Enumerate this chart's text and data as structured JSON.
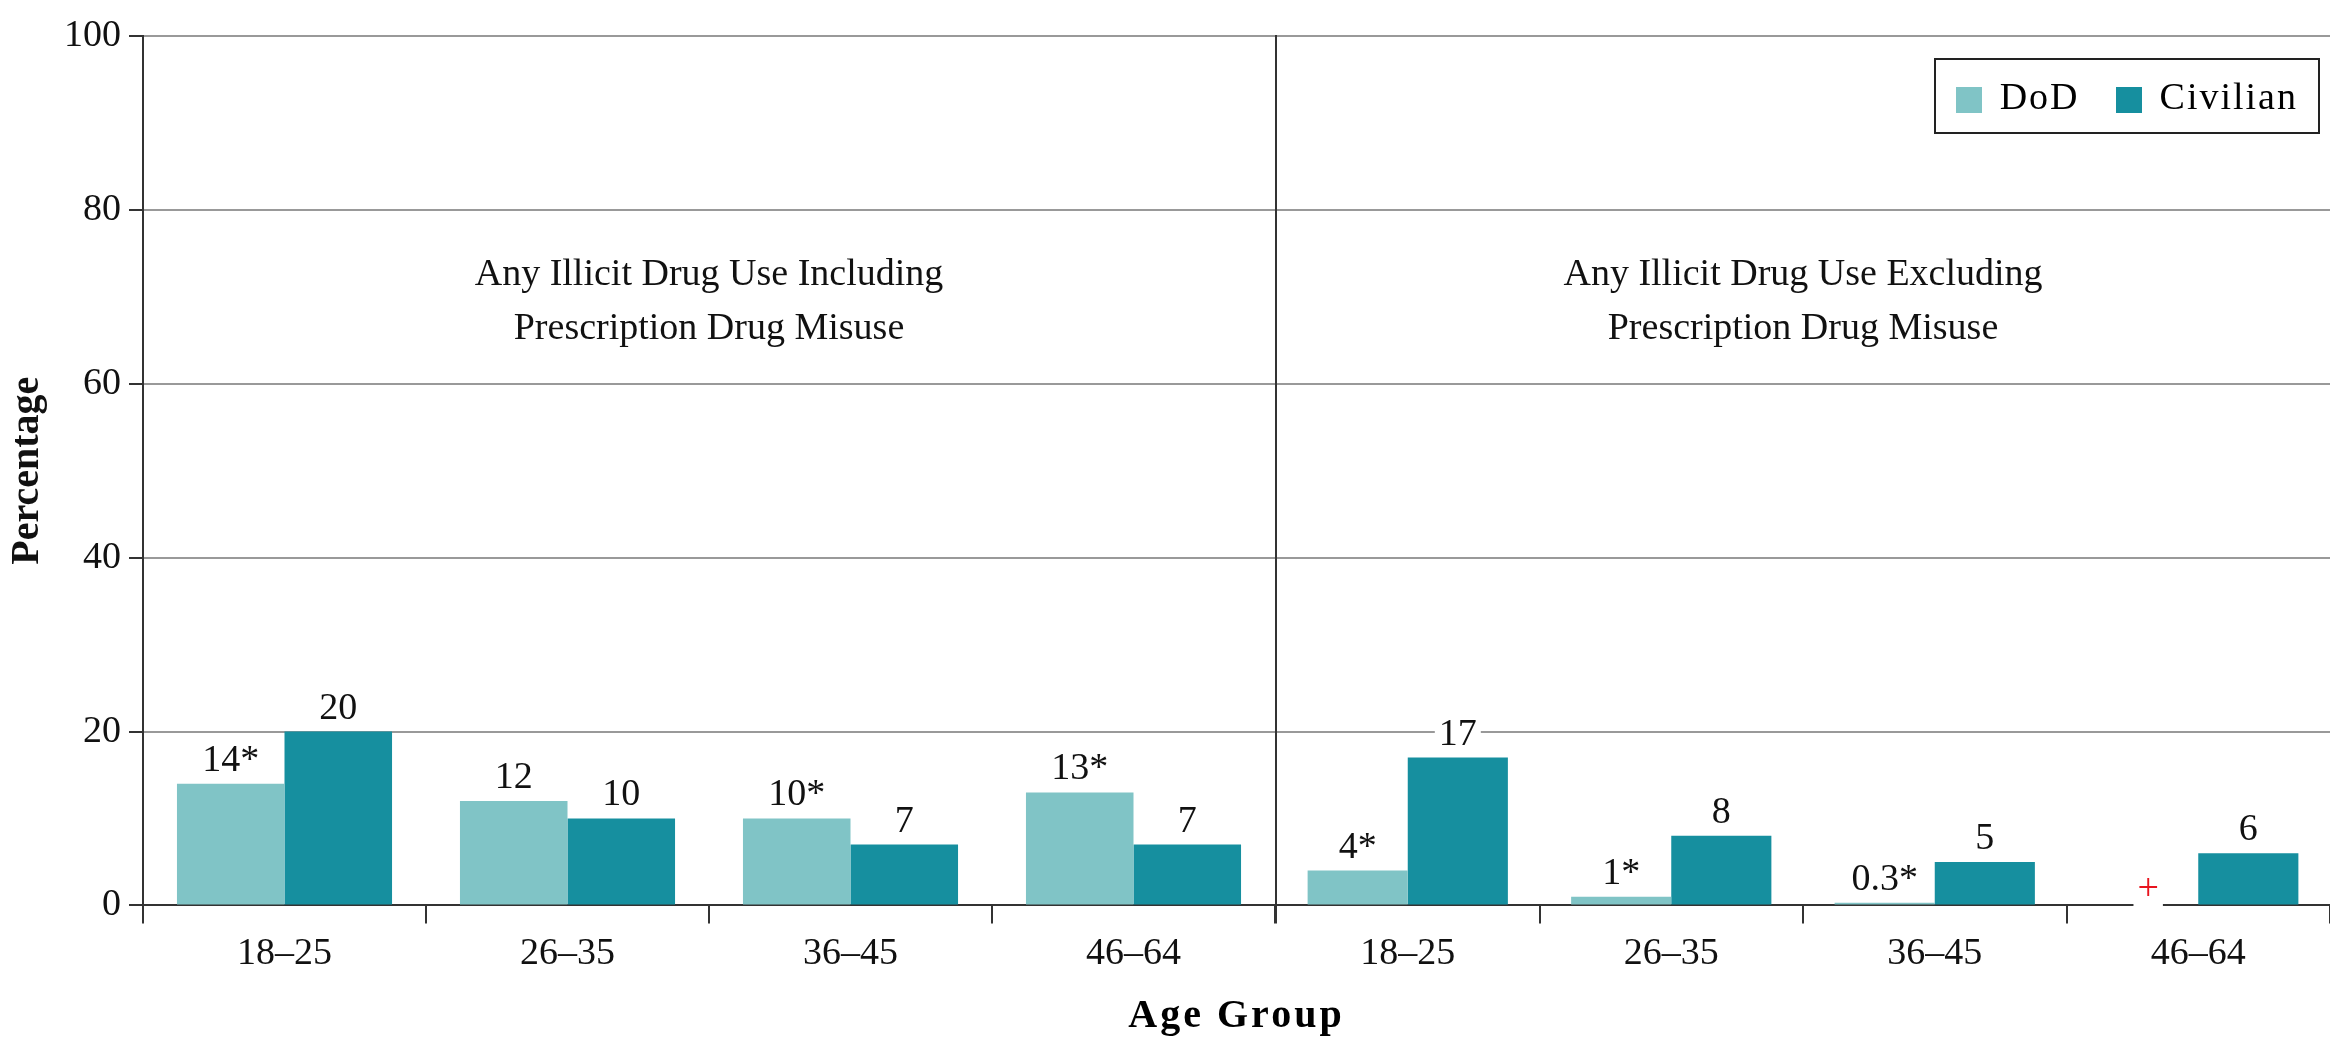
{
  "chart_data": [
    {
      "type": "bar",
      "ylabel": "Percentage",
      "xlabel": "Age Group",
      "categories": [
        "18–25",
        "26–35",
        "36–45",
        "46–64"
      ],
      "series": [
        {
          "color": "#80c4c6",
          "values": [
            14,
            12,
            10,
            13
          ],
          "value_labels": [
            "14*",
            "12",
            "10*",
            "13*"
          ]
        },
        {
          "color": "#168f9f",
          "values": [
            20,
            10,
            7,
            7
          ],
          "value_labels": [
            "20",
            "10",
            "7",
            "7"
          ]
        }
      ],
      "ylim": [
        0,
        100
      ],
      "yticks": [
        0,
        20,
        40,
        60,
        80,
        100
      ],
      "grid": "y",
      "legend": false,
      "annotations": [
        "Any Illicit Drug Use Including\nPrescription Drug Misuse"
      ]
    },
    {
      "type": "bar",
      "categories": [
        "18–25",
        "26–35",
        "36–45",
        "46–64"
      ],
      "series": [
        {
          "name": "DoD",
          "color": "#80c4c6",
          "values": [
            4,
            1,
            0.3,
            null
          ],
          "value_labels": [
            "4*",
            "1*",
            "0.3*",
            "+"
          ]
        },
        {
          "name": "Civilian",
          "color": "#168f9f",
          "values": [
            17,
            8,
            5,
            6
          ],
          "value_labels": [
            "17",
            "8",
            "5",
            "6"
          ]
        }
      ],
      "ylim": [
        0,
        100
      ],
      "yticks": [
        0,
        20,
        40,
        60,
        80,
        100
      ],
      "grid": "y",
      "legend": "top right",
      "tick_labels": "x",
      "annotations": [
        "Any Illicit Drug Use Excluding\nPrescription Drug Misuse"
      ]
    }
  ]
}
